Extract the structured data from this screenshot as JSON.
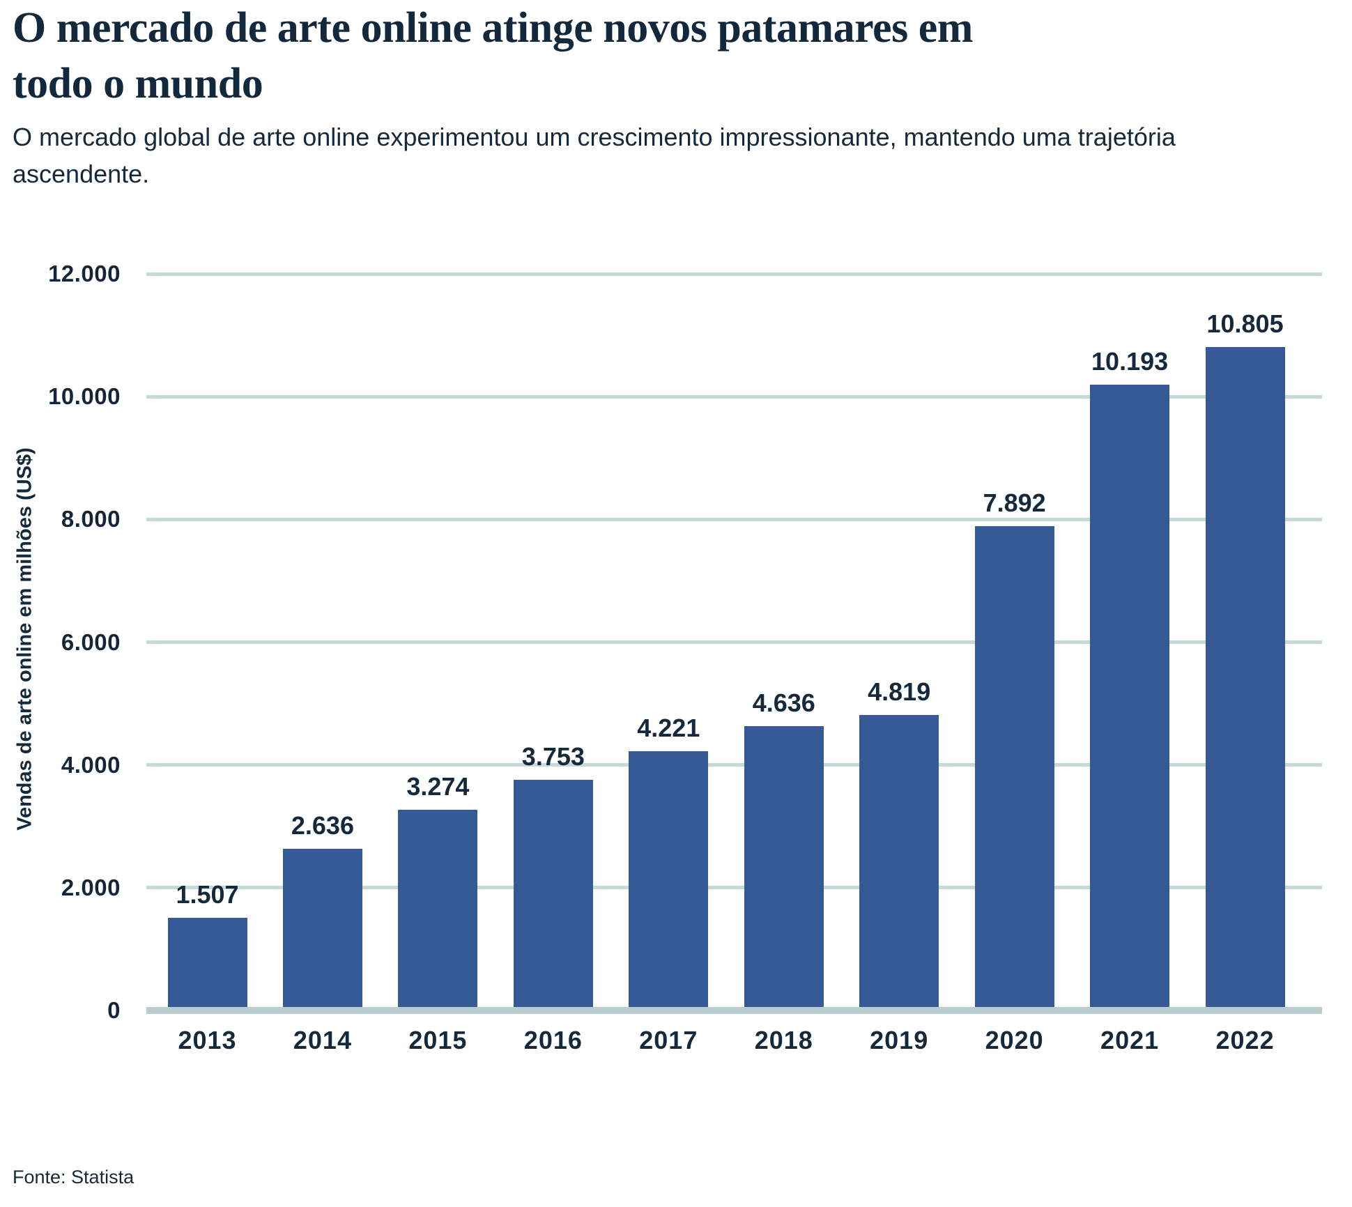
{
  "header": {
    "title_lines": [
      "O mercado de arte online atinge novos patamares em",
      "todo o mundo"
    ],
    "subtitle_lines": [
      "O mercado global de arte online experimentou um crescimento impressionante, mantendo uma trajetória",
      "ascendente."
    ]
  },
  "footer": {
    "source": "Fonte: Statista"
  },
  "chart_data": {
    "type": "bar",
    "title": "O mercado de arte online atinge novos patamares em todo o mundo",
    "subtitle": "O mercado global de arte online experimentou um crescimento impressionante, mantendo uma trajetória ascendente.",
    "xlabel": "",
    "ylabel": "Vendas de arte online em milhões (US$)",
    "categories": [
      "2013",
      "2014",
      "2015",
      "2016",
      "2017",
      "2018",
      "2019",
      "2020",
      "2021",
      "2022"
    ],
    "values": [
      1507,
      2636,
      3274,
      3753,
      4221,
      4636,
      4819,
      7892,
      10193,
      10805
    ],
    "value_labels": [
      "1.507",
      "2.636",
      "3.274",
      "3.753",
      "4.221",
      "4.636",
      "4.819",
      "7.892",
      "10.193",
      "10.805"
    ],
    "y_ticks": {
      "values": [
        0,
        2000,
        4000,
        6000,
        8000,
        10000,
        12000
      ],
      "labels": [
        "0",
        "2.000",
        "4.000",
        "6.000",
        "8.000",
        "10.000",
        "12.000"
      ]
    },
    "ylim": [
      0,
      12000
    ],
    "grid": true,
    "legend_position": "none",
    "source": "Fonte: Statista",
    "colors": {
      "bar": "#365A96",
      "gridline": "#C6D8D9",
      "baseline": "#B7CDD0",
      "text": "#14293C"
    }
  }
}
